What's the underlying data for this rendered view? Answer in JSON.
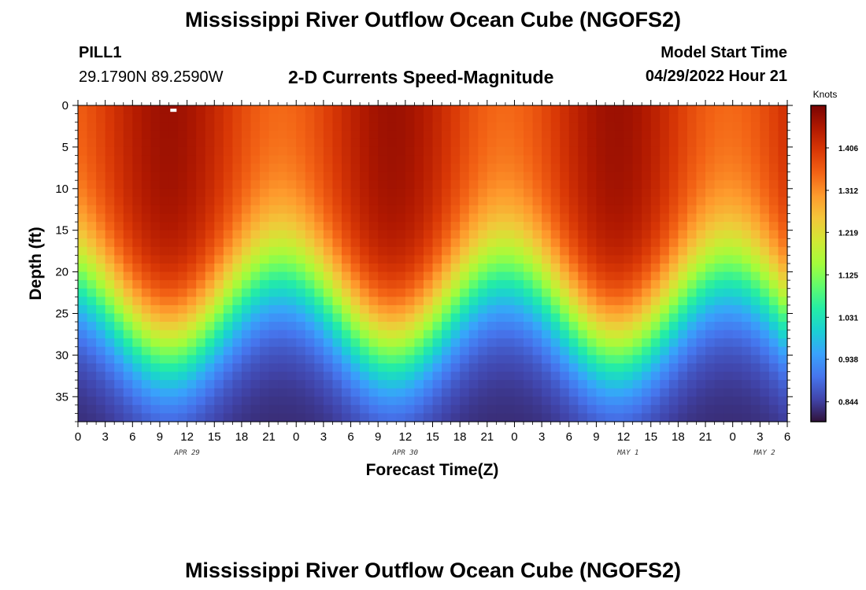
{
  "header": {
    "title": "Mississippi River Outflow Ocean Cube (NGOFS2)",
    "station_id": "PILL1",
    "station_coords": "29.1790N  89.2590W",
    "plot_subtitle": "2-D Currents Speed-Magnitude",
    "model_start_label": "Model Start Time",
    "model_start_value": "04/29/2022 Hour 21"
  },
  "footer": {
    "title": "Mississippi River Outflow Ocean Cube (NGOFS2)"
  },
  "chart_data": {
    "type": "heatmap",
    "xlabel": "Forecast Time(Z)",
    "ylabel": "Depth (ft)",
    "x_tick_labels": [
      "0",
      "3",
      "6",
      "9",
      "12",
      "15",
      "18",
      "21",
      "0",
      "3",
      "6",
      "9",
      "12",
      "15",
      "18",
      "21",
      "0",
      "3",
      "6",
      "9",
      "12",
      "15",
      "18",
      "21",
      "0",
      "3",
      "6"
    ],
    "x_hours": [
      0,
      3,
      6,
      9,
      12,
      15,
      18,
      21,
      24,
      27,
      30,
      33,
      36,
      39,
      42,
      45,
      48,
      51,
      54,
      57,
      60,
      63,
      66,
      69,
      72,
      75,
      78
    ],
    "xlim_hours": [
      0,
      78
    ],
    "date_labels": [
      {
        "text": "APR 29",
        "hour": 12
      },
      {
        "text": "APR 30",
        "hour": 36
      },
      {
        "text": "MAY 1",
        "hour": 60.5
      },
      {
        "text": "MAY 2",
        "hour": 75.5
      }
    ],
    "y_ticks": [
      0,
      5,
      10,
      15,
      20,
      25,
      30,
      35
    ],
    "ylim": [
      0,
      38
    ],
    "y_inverted": true,
    "colorbar": {
      "unit": "Knots",
      "tick_labels": [
        "1.406",
        "1.312",
        "1.219",
        "1.125",
        "1.031",
        "0.938",
        "0.844"
      ],
      "tick_values": [
        1.406,
        1.312,
        1.219,
        1.125,
        1.031,
        0.938,
        0.844
      ],
      "range": [
        0.8,
        1.5
      ],
      "colormap": [
        "#30123b",
        "#4145ab",
        "#4675ed",
        "#39a2fc",
        "#1bcfd4",
        "#24eca6",
        "#61fc6c",
        "#a4fc3b",
        "#d1e834",
        "#f3c63a",
        "#fe9b2d",
        "#f36315",
        "#d93806",
        "#b11901",
        "#7a0403"
      ]
    },
    "field_model": {
      "description_units": "speed in knots vs forecast hour and depth in ft",
      "surface_mean_kn": 1.41,
      "surface_amplitude_kn": 0.06,
      "bottom_speed_kn": 0.82,
      "mean_transition_depth_ft": 24.5,
      "transition_depth_amplitude_ft": 4.5,
      "transition_width_ft": 4.2,
      "period_hours": 24.6,
      "peak_hour": 10
    },
    "marker": {
      "hour": 10.5,
      "depth_ft": 0.3,
      "color": "#ffffff"
    }
  }
}
